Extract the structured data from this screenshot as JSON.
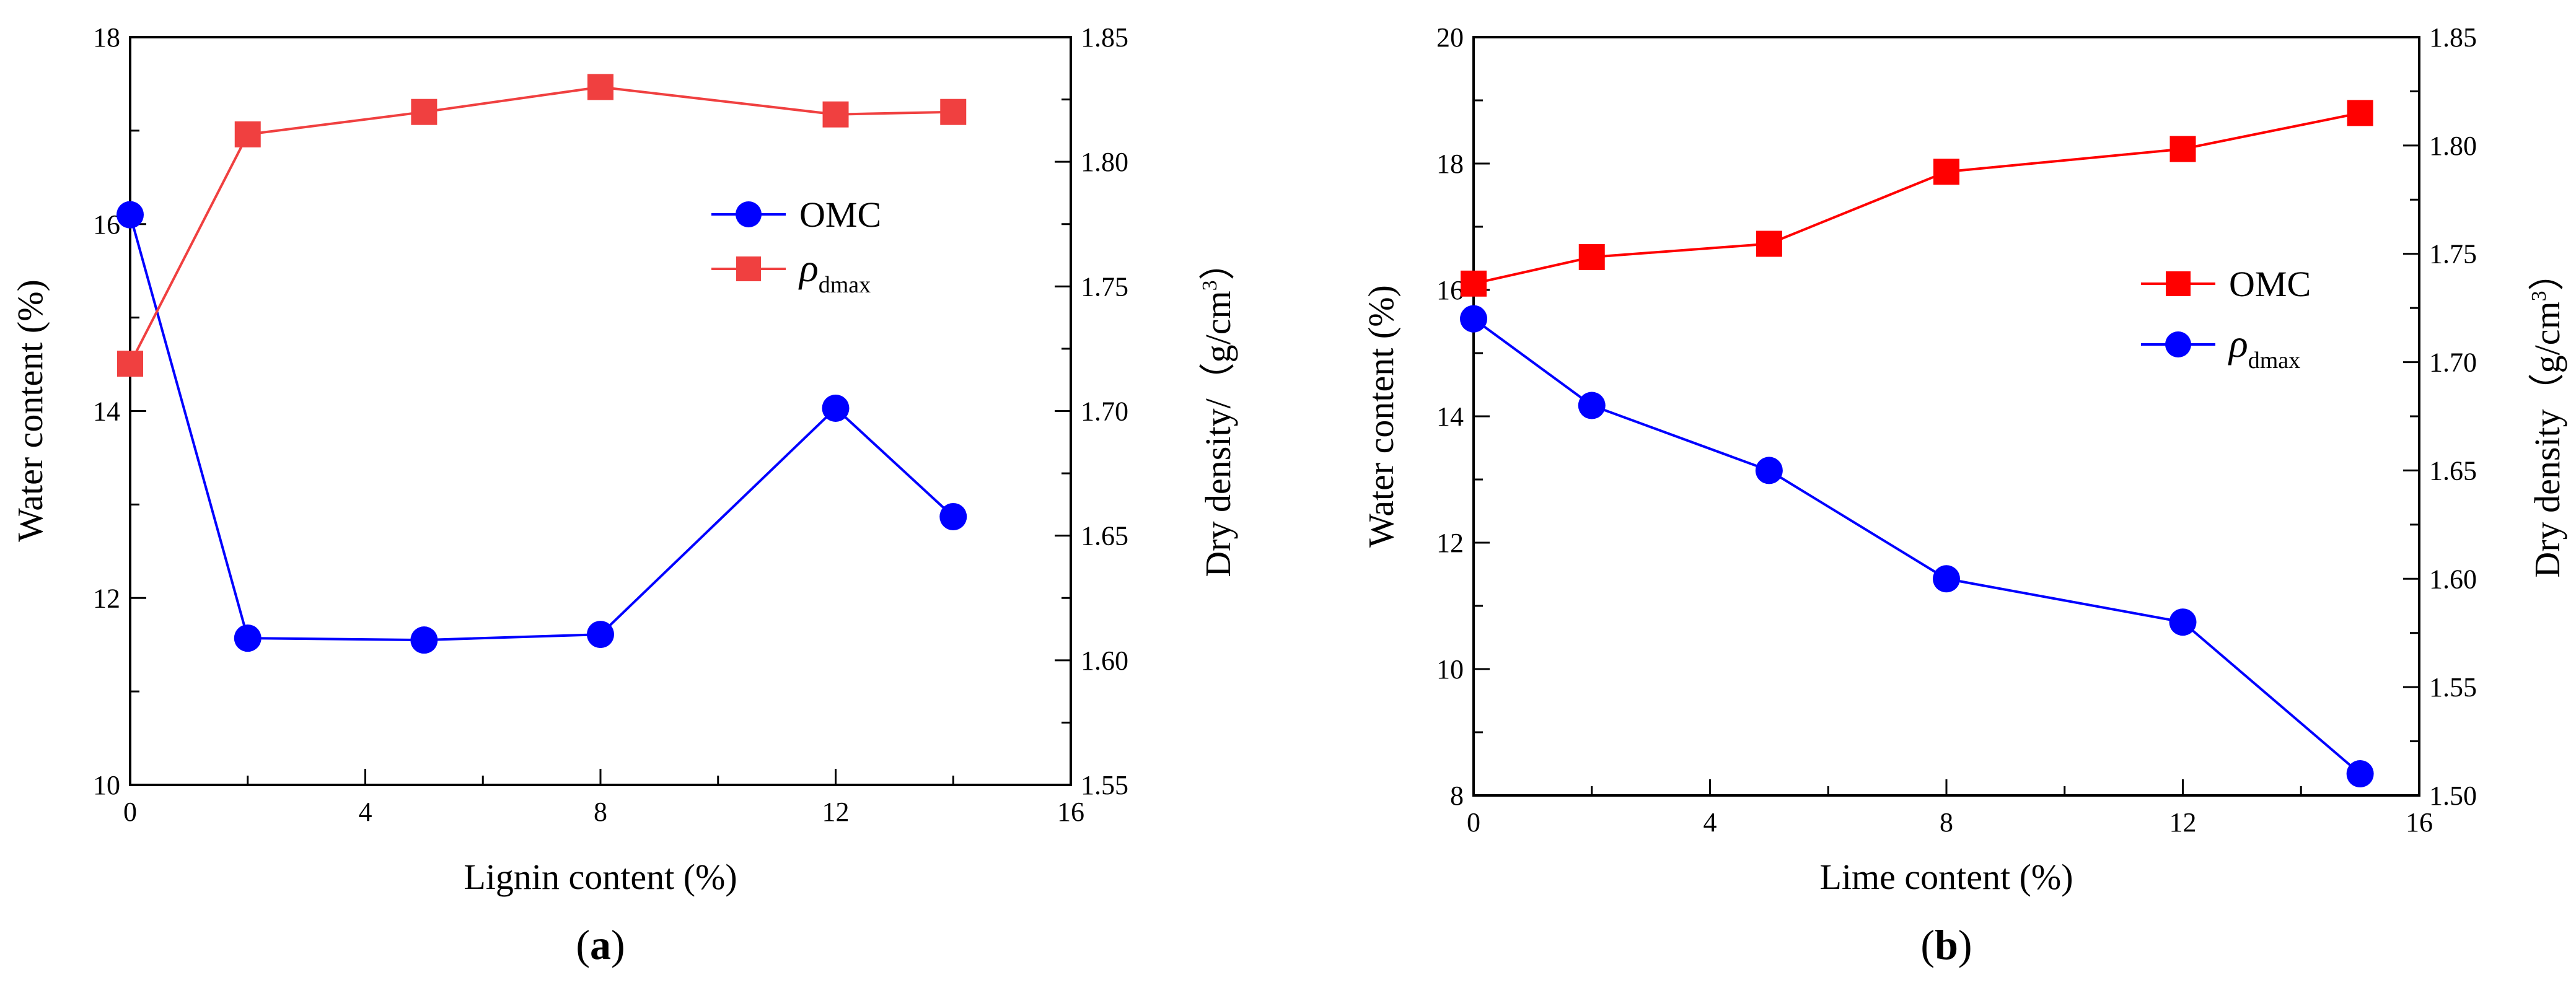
{
  "figure": {
    "panels": [
      {
        "label_open": "(",
        "label_letter": "a",
        "label_close": ")",
        "xlabel": "Lignin content (%)",
        "ylabel": "Water content (%)",
        "y2label_main": "Dry density/（g/cm",
        "y2label_sup": "3",
        "y2label_close": "）"
      },
      {
        "label_open": "(",
        "label_letter": "b",
        "label_close": ")",
        "xlabel": "Lime content (%)",
        "ylabel": "Water content (%)",
        "y2label_main": "Dry density（g/cm",
        "y2label_sup": "3",
        "y2label_close": "）"
      }
    ]
  },
  "chart_data": [
    {
      "type": "line",
      "title": "",
      "xlabel": "Lignin content (%)",
      "ylabel": "Water content (%)",
      "y2label": "Dry density/（g/cm3）",
      "xlim": [
        0,
        16
      ],
      "ylim": [
        10,
        18
      ],
      "y2lim": [
        1.55,
        1.85
      ],
      "xticks": [
        0,
        4,
        8,
        12,
        16
      ],
      "yticks": [
        10,
        12,
        14,
        16,
        18
      ],
      "y2ticks": [
        1.55,
        1.6,
        1.65,
        1.7,
        1.75,
        1.8,
        1.85
      ],
      "y2tick_labels": [
        "1.55",
        "1.60",
        "1.65",
        "1.70",
        "1.75",
        "1.80",
        "1.85"
      ],
      "legend_position": "upper-right-inside",
      "series": [
        {
          "name": "OMC",
          "axis": "left",
          "marker": "circle",
          "color": "#0000ff",
          "x": [
            0,
            2,
            5,
            8,
            12,
            14
          ],
          "values": [
            16.1,
            11.57,
            11.55,
            11.61,
            14.03,
            12.87
          ]
        },
        {
          "name": "ρ",
          "name_sub": "dmax",
          "axis": "right",
          "marker": "square",
          "color": "#f04040",
          "x": [
            0,
            2,
            5,
            8,
            12,
            14
          ],
          "values": [
            1.719,
            1.811,
            1.82,
            1.83,
            1.819,
            1.82
          ]
        }
      ]
    },
    {
      "type": "line",
      "title": "",
      "xlabel": "Lime content (%)",
      "ylabel": "Water content (%)",
      "y2label": "Dry density（g/cm3）",
      "xlim": [
        0,
        16
      ],
      "ylim": [
        8,
        20
      ],
      "y2lim": [
        1.5,
        1.85
      ],
      "xticks": [
        0,
        4,
        8,
        12,
        16
      ],
      "yticks": [
        8,
        10,
        12,
        14,
        16,
        18,
        20
      ],
      "y2ticks": [
        1.5,
        1.55,
        1.6,
        1.65,
        1.7,
        1.75,
        1.8,
        1.85
      ],
      "y2tick_labels": [
        "1.50",
        "1.55",
        "1.60",
        "1.65",
        "1.70",
        "1.75",
        "1.80",
        "1.85"
      ],
      "legend_position": "center-right-inside",
      "series": [
        {
          "name": "OMC",
          "axis": "left",
          "marker": "square",
          "color": "#ff0000",
          "x": [
            0,
            2,
            5,
            8,
            12,
            15
          ],
          "values": [
            16.1,
            16.52,
            16.73,
            17.87,
            18.23,
            18.8
          ]
        },
        {
          "name": "ρ",
          "name_sub": "dmax",
          "axis": "right",
          "marker": "circle",
          "color": "#0000ff",
          "x": [
            0,
            2,
            5,
            8,
            12,
            15
          ],
          "values": [
            1.72,
            1.68,
            1.65,
            1.6,
            1.58,
            1.51
          ]
        }
      ]
    }
  ]
}
